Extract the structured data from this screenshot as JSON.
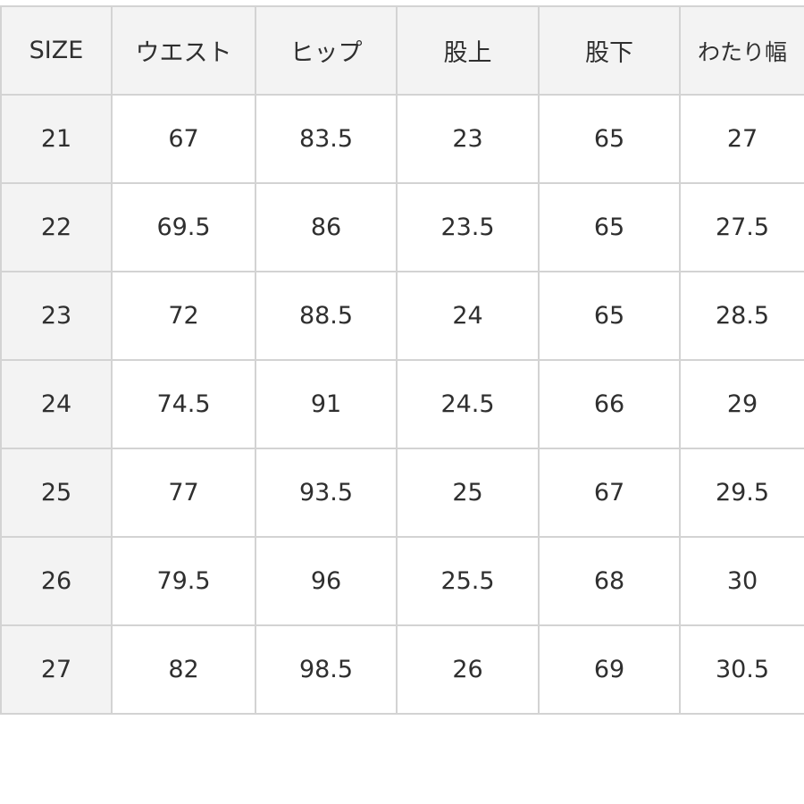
{
  "table": {
    "headers": [
      "SIZE",
      "ウエスト",
      "ヒップ",
      "股上",
      "股下",
      "わたり幅"
    ],
    "rows": [
      [
        "21",
        "67",
        "83.5",
        "23",
        "65",
        "27"
      ],
      [
        "22",
        "69.5",
        "86",
        "23.5",
        "65",
        "27.5"
      ],
      [
        "23",
        "72",
        "88.5",
        "24",
        "65",
        "28.5"
      ],
      [
        "24",
        "74.5",
        "91",
        "24.5",
        "66",
        "29"
      ],
      [
        "25",
        "77",
        "93.5",
        "25",
        "67",
        "29.5"
      ],
      [
        "26",
        "79.5",
        "96",
        "25.5",
        "68",
        "30"
      ],
      [
        "27",
        "82",
        "98.5",
        "26",
        "69",
        "30.5"
      ]
    ]
  },
  "colors": {
    "header_bg": "#f3f3f3",
    "border": "#d3d3d3",
    "text": "#2f2f2f"
  }
}
